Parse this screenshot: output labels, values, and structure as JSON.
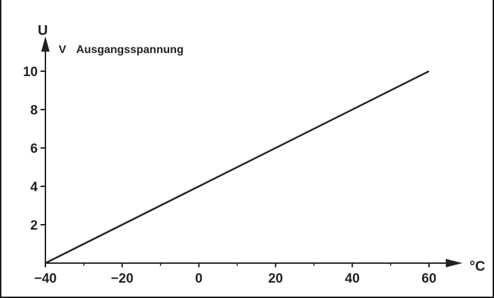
{
  "chart_data": {
    "type": "line",
    "ylabel": "U",
    "y_unit": "V",
    "title": "Ausgangsspannung",
    "xlabel": "°C",
    "xlim": [
      -40,
      60
    ],
    "ylim": [
      0,
      10
    ],
    "x_ticks": [
      -40,
      -20,
      0,
      20,
      40,
      60
    ],
    "y_ticks": [
      2,
      4,
      6,
      8,
      10
    ],
    "x_minor_ticks": [
      -30,
      -10,
      10,
      30,
      50
    ],
    "grid": false,
    "series": [
      {
        "x": [
          -40,
          60
        ],
        "y": [
          0,
          10
        ]
      }
    ],
    "colors": {
      "line": "#222222",
      "axis": "#222222"
    }
  }
}
